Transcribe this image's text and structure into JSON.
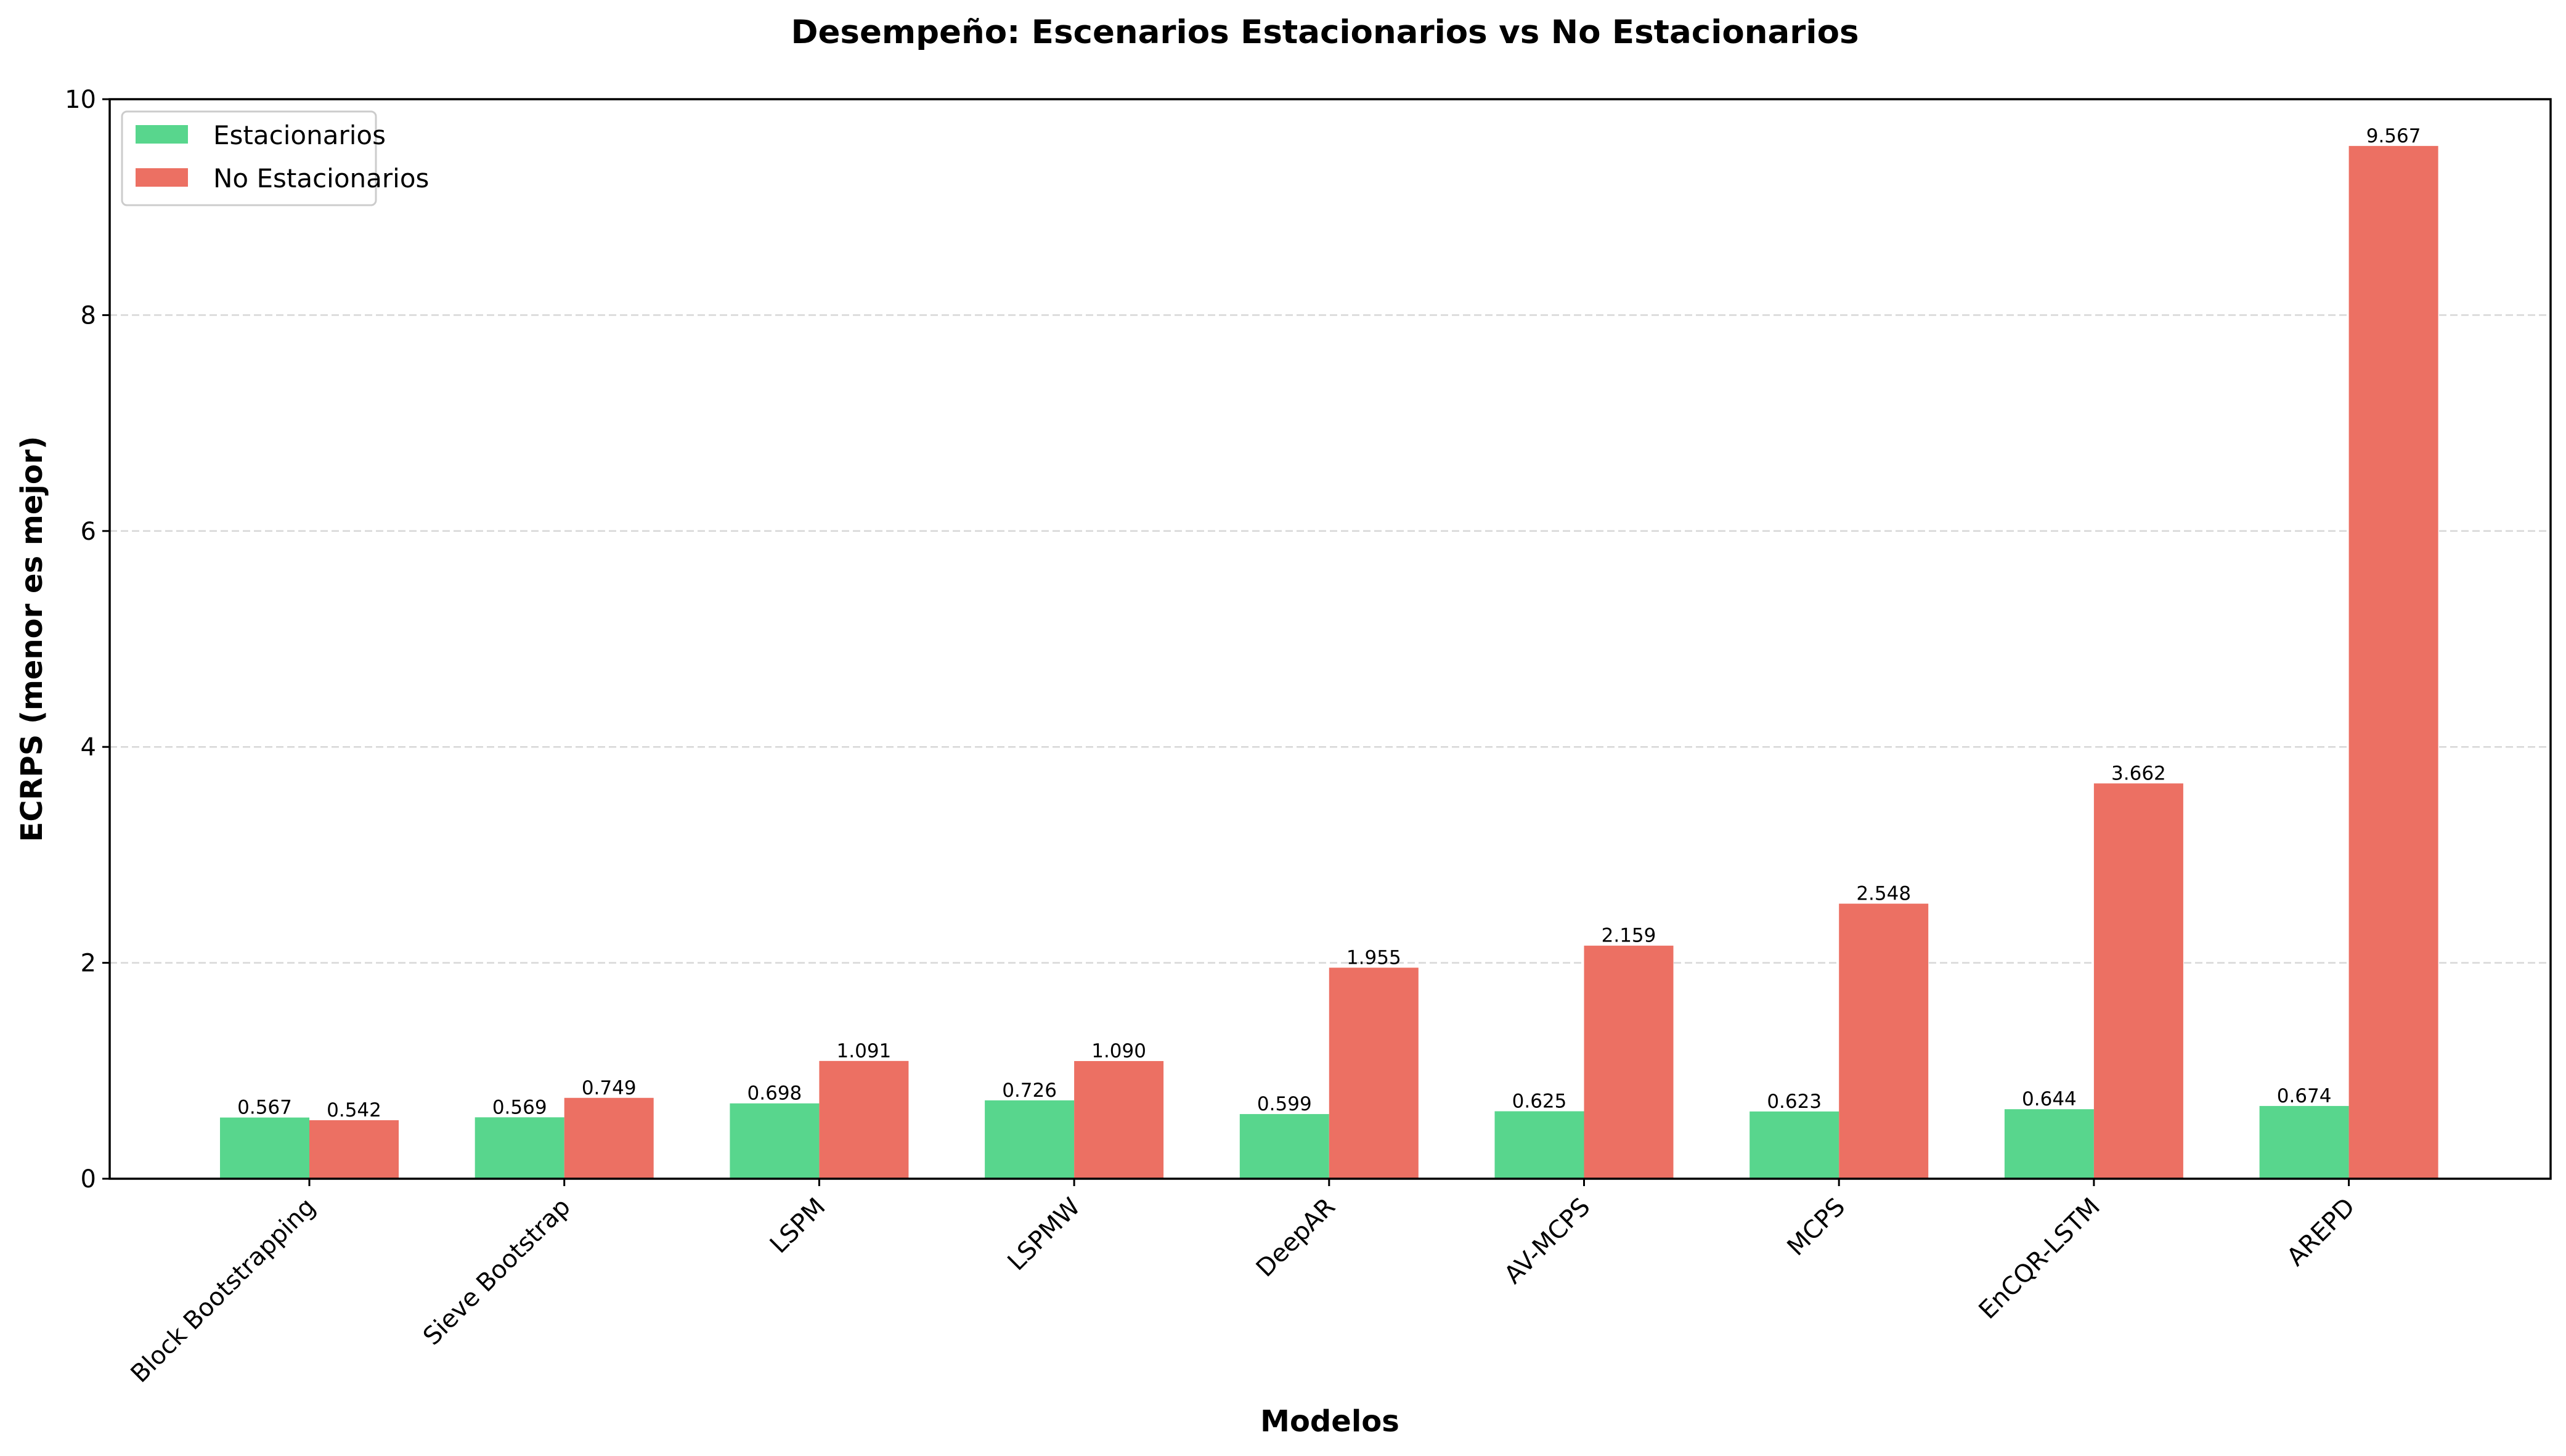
{
  "chart_data": {
    "type": "bar",
    "title": "Desempeño: Escenarios Estacionarios vs No Estacionarios",
    "xlabel": "Modelos",
    "ylabel": "ECRPS (menor es mejor)",
    "ylim": [
      0,
      10
    ],
    "yticks": [
      "0",
      "2",
      "4",
      "6",
      "8",
      "10"
    ],
    "grid": "horizontal dashed",
    "legend_position": "top-left",
    "categories": [
      "Block Bootstrapping",
      "Sieve Bootstrap",
      "LSPM",
      "LSPMW",
      "DeepAR",
      "AV-MCPS",
      "MCPS",
      "EnCQR-LSTM",
      "AREPD"
    ],
    "series": [
      {
        "name": "Estacionarios",
        "color": "#58d68d",
        "values": [
          0.567,
          0.569,
          0.698,
          0.726,
          0.599,
          0.625,
          0.623,
          0.644,
          0.674
        ],
        "labels": [
          "0.567",
          "0.569",
          "0.698",
          "0.726",
          "0.599",
          "0.625",
          "0.623",
          "0.644",
          "0.674"
        ]
      },
      {
        "name": "No Estacionarios",
        "color": "#ec7063",
        "values": [
          0.542,
          0.749,
          1.091,
          1.09,
          1.955,
          2.159,
          2.548,
          3.662,
          9.567
        ],
        "labels": [
          "0.542",
          "0.749",
          "1.091",
          "1.090",
          "1.955",
          "2.159",
          "2.548",
          "3.662",
          "9.567"
        ]
      }
    ]
  }
}
